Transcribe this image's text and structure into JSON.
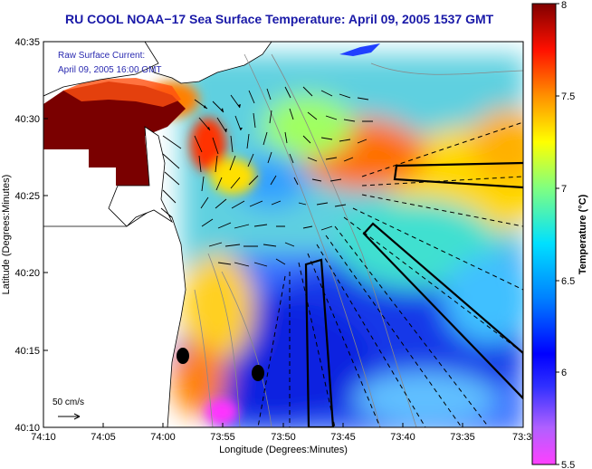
{
  "title": "RU COOL  NOAA−17  Sea Surface Temperature:  April 09, 2005 1537 GMT",
  "legend": {
    "line1": "Raw Surface Current:",
    "line2": "April 09, 2005 16:00 GMT"
  },
  "scale_arrow": {
    "label": "50 cm/s"
  },
  "axes": {
    "xlabel": "Longitude (Degrees:Minutes)",
    "ylabel": "Latitude (Degrees:Minutes)",
    "xticks": [
      "74:10",
      "74:05",
      "74:00",
      "73:55",
      "73:50",
      "73:45",
      "73:40",
      "73:35",
      "73:3"
    ],
    "yticks": [
      "40:35",
      "40:30",
      "40:25",
      "40:20",
      "40:15",
      "40:10"
    ]
  },
  "colorbar": {
    "label": "Temperature (°C)",
    "ticks": [
      "8",
      "7.5",
      "7",
      "6.5",
      "6",
      "5.5"
    ],
    "min": 5.5,
    "max": 8
  },
  "colors": {
    "title": "#1a1aa8",
    "land": "#ffffff",
    "hot": "#7a0000",
    "cold": "#0a14d8"
  }
}
